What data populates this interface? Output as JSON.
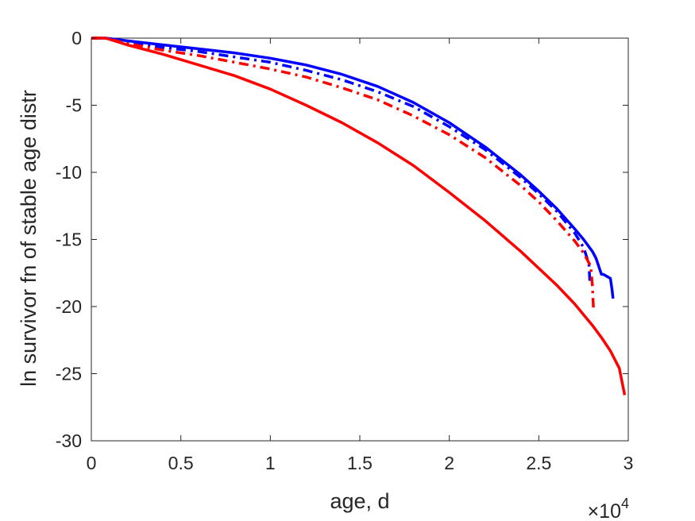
{
  "chart_data": {
    "type": "line",
    "title": "",
    "xlabel": "age, d",
    "ylabel": "ln survivor fn of stable age distr",
    "x_exponent_base": "×10",
    "x_exponent_power": "4",
    "xlim": [
      0,
      30000
    ],
    "ylim": [
      -30,
      0
    ],
    "grid": false,
    "legend": "none",
    "x_ticks": [
      {
        "value": 0,
        "label": "0"
      },
      {
        "value": 5000,
        "label": "0.5"
      },
      {
        "value": 10000,
        "label": "1"
      },
      {
        "value": 15000,
        "label": "1.5"
      },
      {
        "value": 20000,
        "label": "2"
      },
      {
        "value": 25000,
        "label": "2.5"
      },
      {
        "value": 30000,
        "label": "3"
      }
    ],
    "y_ticks": [
      {
        "value": 0,
        "label": "0"
      },
      {
        "value": -5,
        "label": "-5"
      },
      {
        "value": -10,
        "label": "-10"
      },
      {
        "value": -15,
        "label": "-15"
      },
      {
        "value": -20,
        "label": "-20"
      },
      {
        "value": -25,
        "label": "-25"
      },
      {
        "value": -30,
        "label": "-30"
      }
    ],
    "series": [
      {
        "color": "#0000ff",
        "dash": "solid",
        "x": [
          0,
          800,
          2000,
          4000,
          6000,
          8000,
          10000,
          12000,
          14000,
          16000,
          18000,
          20000,
          22000,
          24000,
          25000,
          26000,
          27000,
          27500,
          28000,
          28200,
          28500,
          28600,
          29000,
          29100,
          29150
        ],
        "y": [
          0,
          0,
          -0.2,
          -0.5,
          -0.8,
          -1.1,
          -1.5,
          -2.0,
          -2.7,
          -3.6,
          -4.8,
          -6.3,
          -8.1,
          -10.2,
          -11.4,
          -12.7,
          -14.2,
          -15.0,
          -15.9,
          -16.4,
          -17.6,
          -17.6,
          -17.9,
          -18.8,
          -19.4
        ]
      },
      {
        "color": "#0000ff",
        "dash": "dashdot",
        "x": [
          0,
          800,
          2000,
          4000,
          6000,
          8000,
          10000,
          12000,
          14000,
          16000,
          18000,
          20000,
          22000,
          24000,
          25000,
          26000,
          27000,
          27500,
          27800,
          27850
        ],
        "y": [
          0,
          0,
          -0.3,
          -0.7,
          -1.0,
          -1.4,
          -1.8,
          -2.4,
          -3.1,
          -4.0,
          -5.1,
          -6.6,
          -8.3,
          -10.4,
          -11.6,
          -12.9,
          -14.5,
          -15.6,
          -16.8,
          -18.1
        ]
      },
      {
        "color": "#ff0000",
        "dash": "dashdot",
        "x": [
          0,
          800,
          2000,
          4000,
          6000,
          8000,
          10000,
          12000,
          14000,
          16000,
          18000,
          20000,
          22000,
          24000,
          25000,
          26000,
          27000,
          27500,
          27900,
          28000,
          28050
        ],
        "y": [
          0,
          0,
          -0.4,
          -0.9,
          -1.3,
          -1.8,
          -2.3,
          -2.9,
          -3.7,
          -4.6,
          -5.8,
          -7.2,
          -8.9,
          -11.0,
          -12.2,
          -13.6,
          -15.1,
          -16.0,
          -17.0,
          -18.5,
          -20.1
        ]
      },
      {
        "color": "#ff0000",
        "dash": "solid",
        "x": [
          0,
          800,
          2000,
          4000,
          6000,
          8000,
          10000,
          12000,
          14000,
          16000,
          18000,
          20000,
          22000,
          24000,
          26000,
          27000,
          28000,
          28500,
          29000,
          29500,
          29800
        ],
        "y": [
          0,
          0,
          -0.5,
          -1.2,
          -2.0,
          -2.8,
          -3.8,
          -5.0,
          -6.3,
          -7.8,
          -9.5,
          -11.5,
          -13.6,
          -15.9,
          -18.4,
          -19.8,
          -21.4,
          -22.3,
          -23.3,
          -24.6,
          -26.6
        ]
      }
    ]
  }
}
